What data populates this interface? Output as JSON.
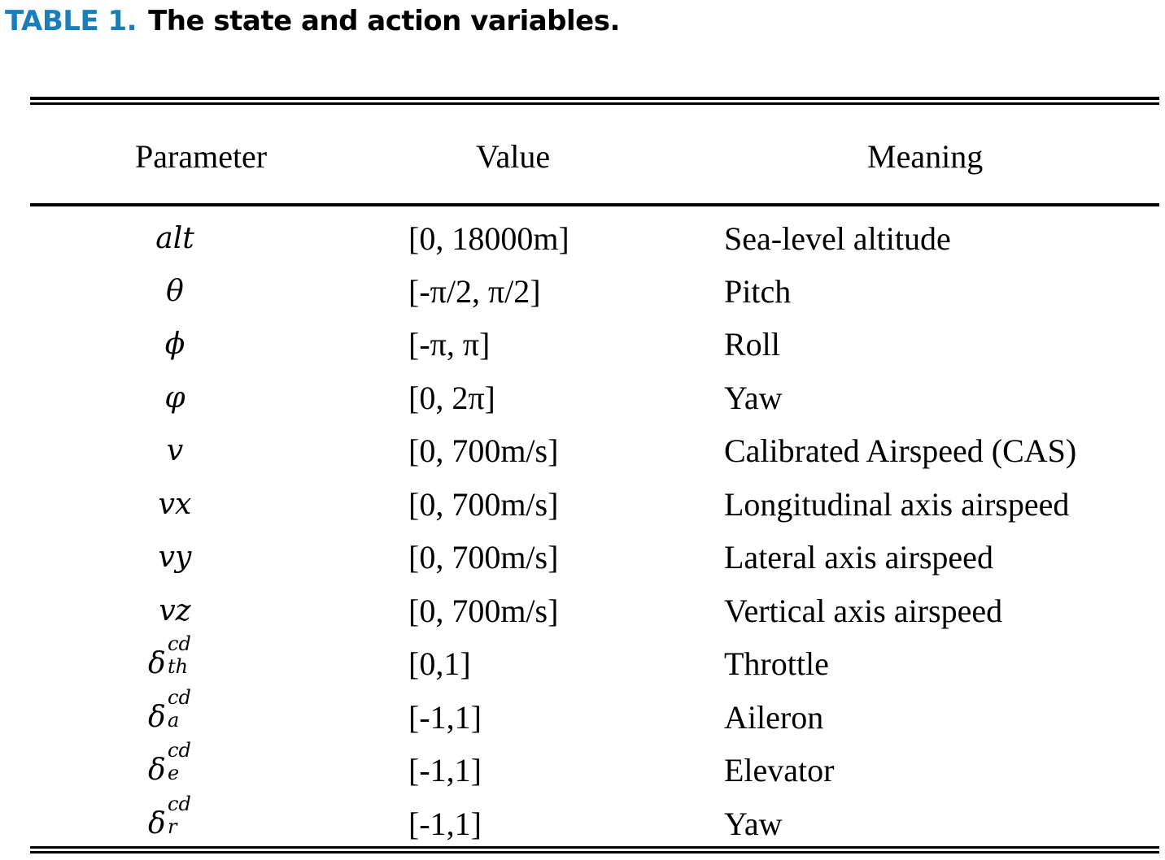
{
  "caption": {
    "label": "TABLE 1.",
    "title": "The state and action variables.",
    "label_color": "#1a7fb8"
  },
  "table": {
    "headers": [
      "Parameter",
      "Value",
      "Meaning"
    ],
    "rows": [
      {
        "parameter": "alt",
        "value": "[0, 18000m]",
        "meaning": "Sea-level altitude"
      },
      {
        "parameter": "θ",
        "value": "[-π/2, π/2]",
        "meaning": "Pitch"
      },
      {
        "parameter": "ϕ",
        "value": "[-π, π]",
        "meaning": "Roll"
      },
      {
        "parameter": "φ",
        "value": "[0, 2π]",
        "meaning": "Yaw"
      },
      {
        "parameter": "v",
        "value": "[0, 700m/s]",
        "meaning": "Calibrated Airspeed (CAS)"
      },
      {
        "parameter": "vx",
        "value": "[0, 700m/s]",
        "meaning": "Longitudinal axis airspeed"
      },
      {
        "parameter": "vy",
        "value": "[0, 700m/s]",
        "meaning": "Lateral axis airspeed"
      },
      {
        "parameter": "vz",
        "value": "[0, 700m/s]",
        "meaning": "Vertical axis airspeed"
      },
      {
        "parameter": {
          "base": "δ",
          "sup": "cd",
          "sub": "th"
        },
        "value": "[0,1]",
        "meaning": "Throttle"
      },
      {
        "parameter": {
          "base": "δ",
          "sup": "cd",
          "sub": "a"
        },
        "value": "[-1,1]",
        "meaning": "Aileron"
      },
      {
        "parameter": {
          "base": "δ",
          "sup": "cd",
          "sub": "e"
        },
        "value": "[-1,1]",
        "meaning": "Elevator"
      },
      {
        "parameter": {
          "base": "δ",
          "sup": "cd",
          "sub": "r"
        },
        "value": "[-1,1]",
        "meaning": "Yaw"
      }
    ]
  }
}
